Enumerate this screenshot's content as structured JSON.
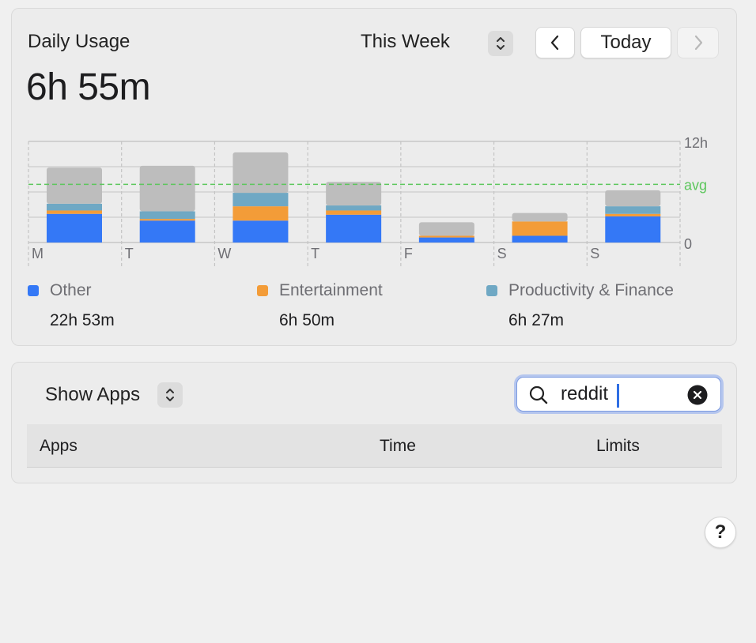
{
  "header": {
    "title": "Daily Usage",
    "total": "6h 55m",
    "period": "This Week",
    "today_label": "Today"
  },
  "colors": {
    "other": "#3478f6",
    "entertainment": "#f39c38",
    "productivity": "#6fa8c4",
    "remaining": "#bdbdbd",
    "avg_line": "#5cc65c"
  },
  "chart_data": {
    "type": "bar",
    "stacked": true,
    "categories": [
      "M",
      "T",
      "W",
      "T",
      "F",
      "S",
      "S"
    ],
    "series": [
      {
        "name": "Other",
        "values": [
          3.4,
          2.6,
          2.6,
          3.3,
          0.6,
          0.8,
          3.1
        ]
      },
      {
        "name": "Entertainment",
        "values": [
          0.4,
          0.2,
          1.7,
          0.5,
          0.2,
          1.7,
          0.3
        ]
      },
      {
        "name": "Productivity & Finance",
        "values": [
          0.8,
          0.9,
          1.6,
          0.6,
          0,
          0,
          0.9
        ]
      },
      {
        "name": "",
        "values": [
          4.3,
          5.4,
          4.8,
          2.8,
          1.6,
          1.0,
          1.9
        ]
      }
    ],
    "yticks": [
      "12h",
      "0"
    ],
    "ylim": [
      0,
      12
    ],
    "avg_value": 6.9,
    "avg_label": "avg"
  },
  "legend": [
    {
      "name": "Other",
      "value": "22h 53m"
    },
    {
      "name": "Entertainment",
      "value": "6h 50m"
    },
    {
      "name": "Productivity & Finance",
      "value": "6h 27m"
    }
  ],
  "apps": {
    "show_label": "Show Apps",
    "search_value": "reddit",
    "columns": {
      "apps": "Apps",
      "time": "Time",
      "limits": "Limits"
    }
  },
  "help_label": "?"
}
